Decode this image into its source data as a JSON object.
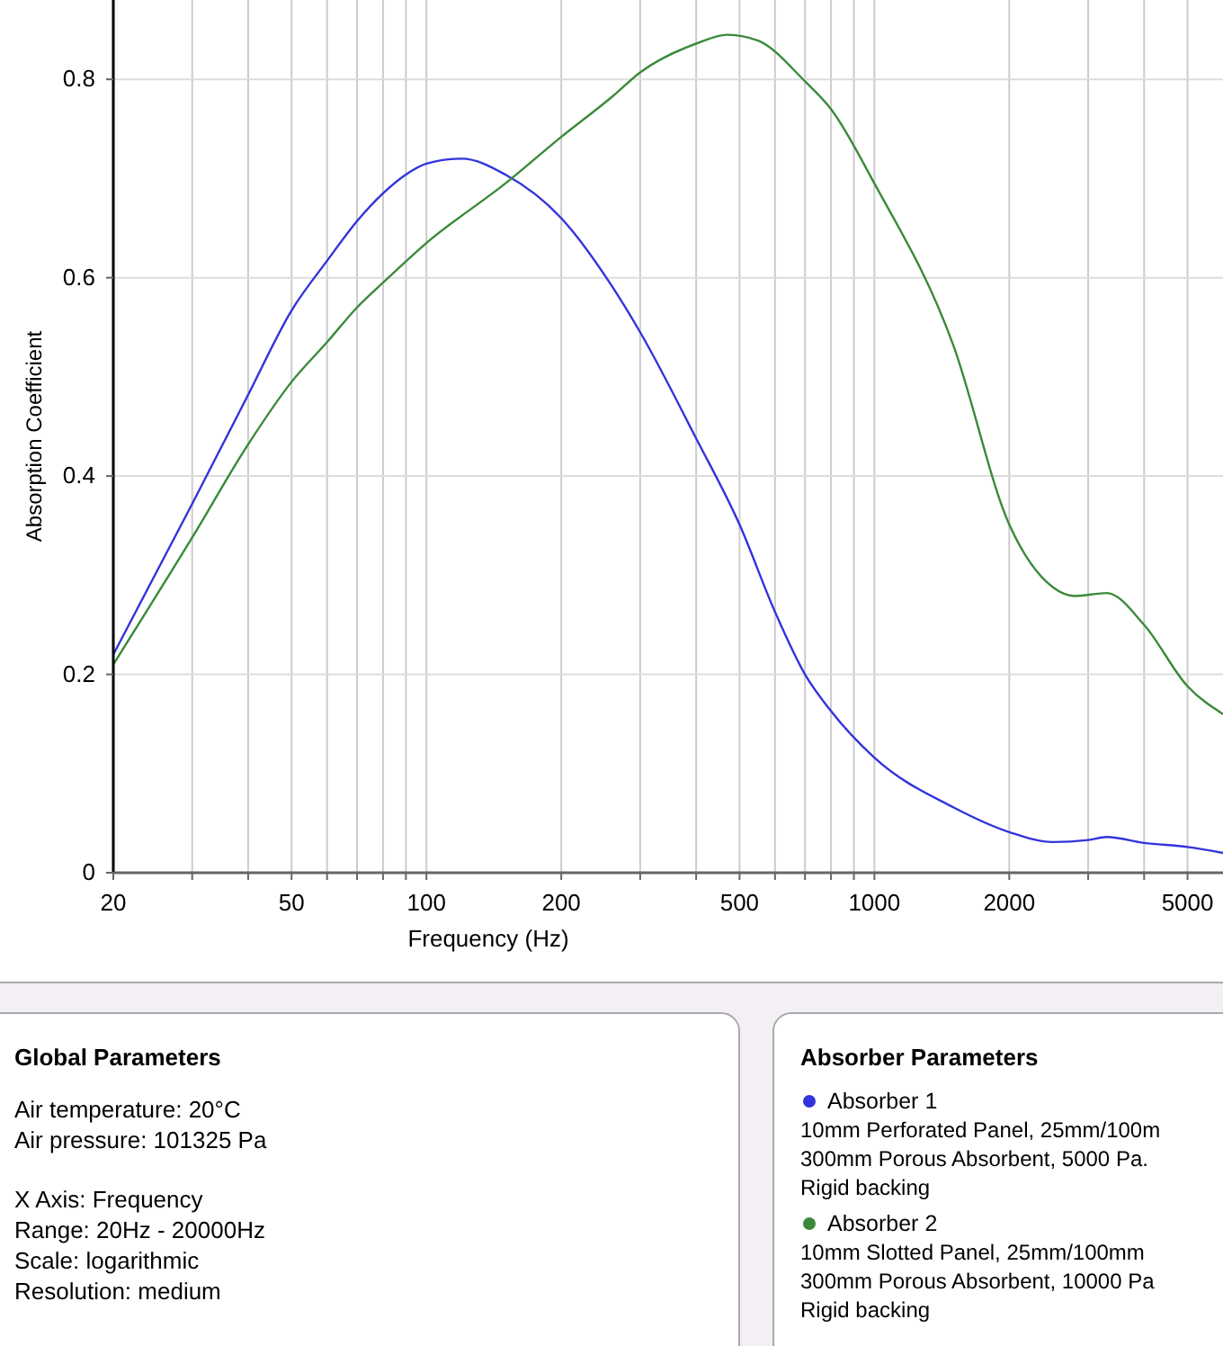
{
  "chart_data": {
    "type": "line",
    "xlabel": "Frequency (Hz)",
    "ylabel": "Absorption Coefficient",
    "log": "x",
    "grid": true,
    "legend": "bottom",
    "legend_title": "Absorber Parameters",
    "xlim": [
      20,
      6000
    ],
    "ylim": [
      0,
      0.88
    ],
    "xticks": [
      20,
      {
        "value": 30,
        "label": null
      },
      {
        "value": 40,
        "label": null
      },
      50,
      {
        "value": 60,
        "label": null
      },
      {
        "value": 70,
        "label": null
      },
      {
        "value": 80,
        "label": null
      },
      {
        "value": 90,
        "label": null
      },
      100,
      200,
      {
        "value": 300,
        "label": null
      },
      {
        "value": 400,
        "label": null
      },
      500,
      {
        "value": 600,
        "label": null
      },
      {
        "value": 700,
        "label": null
      },
      {
        "value": 800,
        "label": null
      },
      {
        "value": 900,
        "label": null
      },
      1000,
      2000,
      {
        "value": 3000,
        "label": null
      },
      {
        "value": 4000,
        "label": null
      },
      5000
    ],
    "yticks": [
      0,
      0.2,
      0.4,
      0.6,
      0.8
    ],
    "series": [
      {
        "name": "Absorber 1",
        "color": "#3333dd",
        "x": [
          20,
          30,
          40,
          50,
          60,
          70,
          80,
          90,
          100,
          120,
          150,
          200,
          259,
          300,
          400,
          500,
          600,
          700,
          800,
          1000,
          1500,
          2000,
          2500,
          3000,
          3300,
          4000,
          5000,
          6000
        ],
        "values": [
          0.22,
          0.372,
          0.482,
          0.567,
          0.617,
          0.657,
          0.685,
          0.704,
          0.715,
          0.72,
          0.704,
          0.66,
          0.592,
          0.545,
          0.438,
          0.351,
          0.263,
          0.2,
          0.163,
          0.116,
          0.066,
          0.041,
          0.031,
          0.033,
          0.036,
          0.03,
          0.026,
          0.02
        ]
      },
      {
        "name": "Absorber 2",
        "color": "#3a8a3a",
        "x": [
          20,
          30,
          40,
          50,
          60,
          70,
          80,
          100,
          150,
          200,
          259,
          300,
          400,
          470,
          550,
          700,
          800,
          1000,
          1500,
          2000,
          2500,
          2800,
          3300,
          4000,
          5000,
          6000
        ],
        "values": [
          0.21,
          0.338,
          0.432,
          0.495,
          0.535,
          0.57,
          0.595,
          0.635,
          0.695,
          0.742,
          0.782,
          0.807,
          0.836,
          0.845,
          0.839,
          0.798,
          0.77,
          0.695,
          0.532,
          0.351,
          0.288,
          0.279,
          0.282,
          0.25,
          0.188,
          0.16
        ]
      }
    ],
    "annotations": [
      "Global Parameters",
      "Air temperature: 20°C",
      "Air pressure: 101325 Pa",
      "X Axis: Frequency",
      "Range: 20Hz - 20000Hz",
      "Scale: logarithmic",
      "Resolution: medium",
      "10mm Perforated Panel, 25mm/100m",
      "300mm Porous Absorbent, 5000 Pa.",
      "Rigid backing",
      "10mm Slotted Panel, 25mm/100mm",
      "300mm Porous Absorbent, 10000 Pa",
      "Rigid backing"
    ]
  }
}
